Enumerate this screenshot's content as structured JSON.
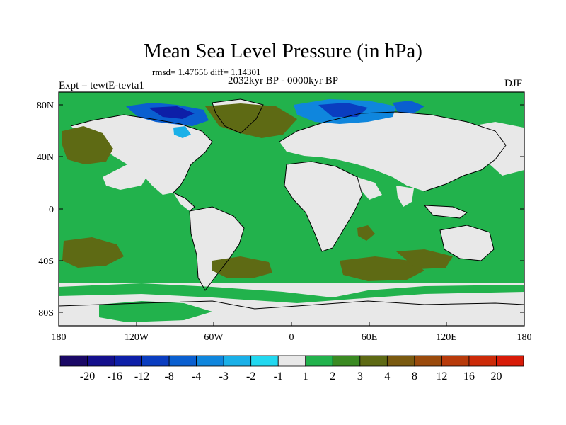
{
  "title": "Mean Sea Level Pressure (in hPa)",
  "stats": "rmsd= 1.47656 diff= 1.14301",
  "period": "2032kyr BP - 0000kyr BP",
  "experiment": "Expt = tewtE-tevta1",
  "season": "DJF",
  "map": {
    "projection": "cylindrical equidistant",
    "lon_range": [
      -180,
      180
    ],
    "lat_range": [
      -90,
      90
    ],
    "lat_ticks": [
      "80N",
      "40N",
      "0",
      "40S",
      "80S"
    ],
    "lon_ticks": [
      "180",
      "120W",
      "60W",
      "0",
      "60E",
      "120E",
      "180"
    ]
  },
  "colorbar": {
    "levels": [
      "-20",
      "-16",
      "-12",
      "-8",
      "-4",
      "-3",
      "-2",
      "-1",
      "1",
      "2",
      "3",
      "4",
      "8",
      "12",
      "16",
      "20"
    ],
    "colors": [
      "#1a0866",
      "#140f8c",
      "#0d1fa8",
      "#0a3dc0",
      "#0a5fd0",
      "#0f86dd",
      "#1ab0e8",
      "#22d8f0",
      "#e8e8e8",
      "#22b24c",
      "#3a8a22",
      "#5e6a14",
      "#7a5a10",
      "#9a4a0c",
      "#b83a0a",
      "#cc2a08",
      "#d81b08"
    ]
  }
}
